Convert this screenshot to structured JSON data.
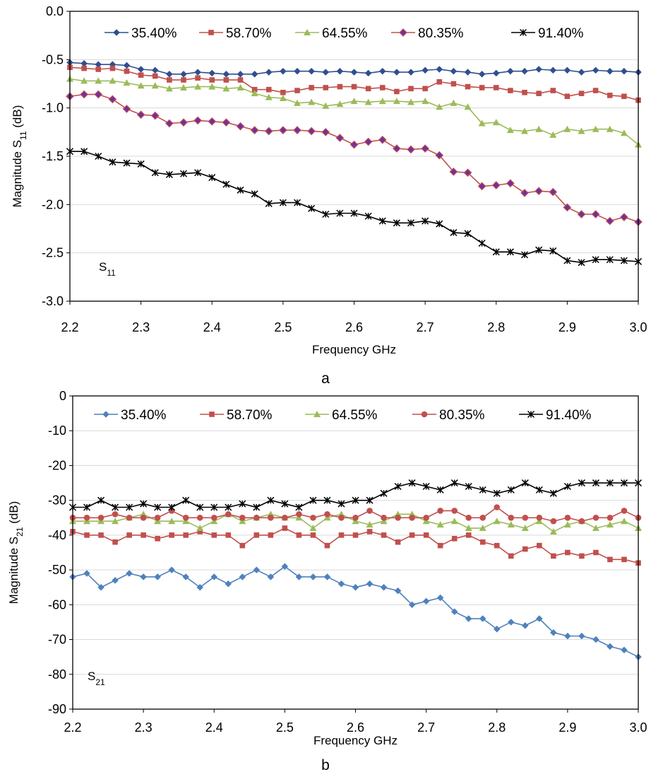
{
  "chart_data": [
    {
      "type": "line",
      "panel_label": "a",
      "xlabel": "Frequency GHz",
      "ylabel": "Magnitude S11 (dB)",
      "ylabel_main": "Magnitude S",
      "ylabel_sub": "11",
      "ylabel_unit": " (dB)",
      "annotation_main": "S",
      "annotation_sub": "11",
      "xlim": [
        2.2,
        3.0
      ],
      "ylim": [
        -3.0,
        0.0
      ],
      "xticks": [
        "2.2",
        "2.3",
        "2.4",
        "2.5",
        "2.6",
        "2.7",
        "2.8",
        "2.9",
        "3.0"
      ],
      "yticks": [
        "0.0",
        "-0.5",
        "-1.0",
        "-1.5",
        "-2.0",
        "-2.5",
        "-3.0"
      ],
      "grid": "horizontal",
      "legend": "top",
      "x": [
        2.2,
        2.22,
        2.24,
        2.26,
        2.28,
        2.3,
        2.32,
        2.34,
        2.36,
        2.38,
        2.4,
        2.42,
        2.44,
        2.46,
        2.48,
        2.5,
        2.52,
        2.54,
        2.56,
        2.58,
        2.6,
        2.62,
        2.64,
        2.66,
        2.68,
        2.7,
        2.72,
        2.74,
        2.76,
        2.78,
        2.8,
        2.82,
        2.84,
        2.86,
        2.88,
        2.9,
        2.92,
        2.94,
        2.96,
        2.98,
        3.0
      ],
      "series": [
        {
          "name": "35.40%",
          "color": "#2f4f8f",
          "marker": "diamond",
          "values": [
            -0.53,
            -0.54,
            -0.55,
            -0.55,
            -0.56,
            -0.6,
            -0.61,
            -0.65,
            -0.65,
            -0.63,
            -0.64,
            -0.65,
            -0.65,
            -0.65,
            -0.63,
            -0.62,
            -0.62,
            -0.62,
            -0.63,
            -0.62,
            -0.63,
            -0.64,
            -0.62,
            -0.63,
            -0.63,
            -0.61,
            -0.6,
            -0.62,
            -0.63,
            -0.65,
            -0.64,
            -0.62,
            -0.62,
            -0.6,
            -0.61,
            -0.61,
            -0.63,
            -0.61,
            -0.62,
            -0.62,
            -0.63
          ]
        },
        {
          "name": "58.70%",
          "color": "#c0504d",
          "marker": "square",
          "values": [
            -0.58,
            -0.59,
            -0.6,
            -0.59,
            -0.62,
            -0.66,
            -0.67,
            -0.71,
            -0.71,
            -0.69,
            -0.71,
            -0.71,
            -0.71,
            -0.81,
            -0.81,
            -0.84,
            -0.82,
            -0.79,
            -0.79,
            -0.78,
            -0.78,
            -0.8,
            -0.79,
            -0.83,
            -0.8,
            -0.8,
            -0.73,
            -0.75,
            -0.78,
            -0.79,
            -0.79,
            -0.82,
            -0.84,
            -0.85,
            -0.82,
            -0.88,
            -0.85,
            -0.82,
            -0.87,
            -0.88,
            -0.92
          ]
        },
        {
          "name": "64.55%",
          "color": "#9bbb59",
          "marker": "triangle",
          "values": [
            -0.7,
            -0.72,
            -0.72,
            -0.72,
            -0.74,
            -0.77,
            -0.77,
            -0.8,
            -0.79,
            -0.78,
            -0.78,
            -0.8,
            -0.79,
            -0.85,
            -0.89,
            -0.9,
            -0.95,
            -0.94,
            -0.98,
            -0.96,
            -0.93,
            -0.94,
            -0.93,
            -0.93,
            -0.94,
            -0.93,
            -0.99,
            -0.95,
            -0.99,
            -1.16,
            -1.15,
            -1.23,
            -1.24,
            -1.22,
            -1.28,
            -1.22,
            -1.24,
            -1.22,
            -1.22,
            -1.26,
            -1.38
          ]
        },
        {
          "name": "80.35%",
          "color": "#c0504d",
          "marker": "diamond-purple",
          "values": [
            -0.88,
            -0.86,
            -0.86,
            -0.91,
            -1.01,
            -1.07,
            -1.08,
            -1.16,
            -1.15,
            -1.13,
            -1.14,
            -1.15,
            -1.19,
            -1.23,
            -1.24,
            -1.23,
            -1.23,
            -1.24,
            -1.25,
            -1.31,
            -1.38,
            -1.35,
            -1.33,
            -1.42,
            -1.43,
            -1.42,
            -1.49,
            -1.66,
            -1.67,
            -1.81,
            -1.8,
            -1.78,
            -1.88,
            -1.86,
            -1.87,
            -2.03,
            -2.1,
            -2.1,
            -2.17,
            -2.13,
            -2.18
          ]
        },
        {
          "name": "91.40%",
          "color": "#000000",
          "marker": "star",
          "values": [
            -1.45,
            -1.45,
            -1.5,
            -1.56,
            -1.57,
            -1.58,
            -1.67,
            -1.69,
            -1.68,
            -1.67,
            -1.72,
            -1.79,
            -1.85,
            -1.89,
            -1.99,
            -1.98,
            -1.98,
            -2.04,
            -2.1,
            -2.09,
            -2.09,
            -2.12,
            -2.17,
            -2.19,
            -2.19,
            -2.17,
            -2.2,
            -2.29,
            -2.3,
            -2.4,
            -2.49,
            -2.49,
            -2.52,
            -2.47,
            -2.48,
            -2.58,
            -2.6,
            -2.57,
            -2.57,
            -2.58,
            -2.59
          ]
        }
      ]
    },
    {
      "type": "line",
      "panel_label": "b",
      "xlabel": "Frequency GHz",
      "ylabel": "Magnitude S21 (dB)",
      "ylabel_main": "Magnitude S",
      "ylabel_sub": "21",
      "ylabel_unit": " (dB)",
      "annotation_main": "S",
      "annotation_sub": "21",
      "xlim": [
        2.2,
        3.0
      ],
      "ylim": [
        -90,
        0
      ],
      "xticks": [
        "2.2",
        "2.3",
        "2.4",
        "2.5",
        "2.6",
        "2.7",
        "2.8",
        "2.9",
        "3.0"
      ],
      "yticks": [
        "0",
        "-10",
        "-20",
        "-30",
        "-40",
        "-50",
        "-60",
        "-70",
        "-80",
        "-90"
      ],
      "grid": "horizontal",
      "legend": "top",
      "x": [
        2.2,
        2.22,
        2.24,
        2.26,
        2.28,
        2.3,
        2.32,
        2.34,
        2.36,
        2.38,
        2.4,
        2.42,
        2.44,
        2.46,
        2.48,
        2.5,
        2.52,
        2.54,
        2.56,
        2.58,
        2.6,
        2.62,
        2.64,
        2.66,
        2.68,
        2.7,
        2.72,
        2.74,
        2.76,
        2.78,
        2.8,
        2.82,
        2.84,
        2.86,
        2.88,
        2.9,
        2.92,
        2.94,
        2.96,
        2.98,
        3.0
      ],
      "series": [
        {
          "name": "35.40%",
          "color": "#4f81bd",
          "marker": "diamond",
          "values": [
            -52,
            -51,
            -55,
            -53,
            -51,
            -52,
            -52,
            -50,
            -52,
            -55,
            -52,
            -54,
            -52,
            -50,
            -52,
            -49,
            -52,
            -52,
            -52,
            -54,
            -55,
            -54,
            -55,
            -56,
            -60,
            -59,
            -58,
            -62,
            -64,
            -64,
            -67,
            -65,
            -66,
            -64,
            -68,
            -69,
            -69,
            -70,
            -72,
            -73,
            -75
          ]
        },
        {
          "name": "58.70%",
          "color": "#c0504d",
          "marker": "square",
          "values": [
            -39,
            -40,
            -40,
            -42,
            -40,
            -40,
            -41,
            -40,
            -40,
            -39,
            -40,
            -40,
            -43,
            -40,
            -40,
            -38,
            -40,
            -40,
            -43,
            -40,
            -40,
            -39,
            -40,
            -42,
            -40,
            -40,
            -43,
            -41,
            -40,
            -42,
            -43,
            -46,
            -44,
            -43,
            -46,
            -45,
            -46,
            -45,
            -47,
            -47,
            -48
          ]
        },
        {
          "name": "64.55%",
          "color": "#9bbb59",
          "marker": "triangle",
          "values": [
            -36,
            -36,
            -36,
            -36,
            -35,
            -34,
            -36,
            -36,
            -36,
            -38,
            -36,
            -34,
            -36,
            -35,
            -34,
            -35,
            -35,
            -38,
            -35,
            -34,
            -36,
            -37,
            -36,
            -34,
            -34,
            -36,
            -37,
            -36,
            -38,
            -38,
            -36,
            -37,
            -38,
            -36,
            -39,
            -37,
            -36,
            -38,
            -37,
            -36,
            -38
          ]
        },
        {
          "name": "80.35%",
          "color": "#c0504d",
          "marker": "circle",
          "values": [
            -35,
            -35,
            -35,
            -34,
            -35,
            -35,
            -35,
            -33,
            -35,
            -35,
            -35,
            -34,
            -35,
            -35,
            -35,
            -35,
            -34,
            -35,
            -34,
            -35,
            -35,
            -33,
            -35,
            -35,
            -35,
            -35,
            -33,
            -33,
            -35,
            -35,
            -32,
            -35,
            -35,
            -35,
            -36,
            -35,
            -36,
            -35,
            -35,
            -33,
            -35
          ]
        },
        {
          "name": "91.40%",
          "color": "#000000",
          "marker": "star",
          "values": [
            -32,
            -32,
            -30,
            -32,
            -32,
            -31,
            -32,
            -32,
            -30,
            -32,
            -32,
            -32,
            -31,
            -32,
            -30,
            -31,
            -32,
            -30,
            -30,
            -31,
            -30,
            -30,
            -28,
            -26,
            -25,
            -26,
            -27,
            -25,
            -26,
            -27,
            -28,
            -27,
            -25,
            -27,
            -28,
            -26,
            -25,
            -25,
            -25,
            -25,
            -25
          ]
        }
      ]
    }
  ]
}
